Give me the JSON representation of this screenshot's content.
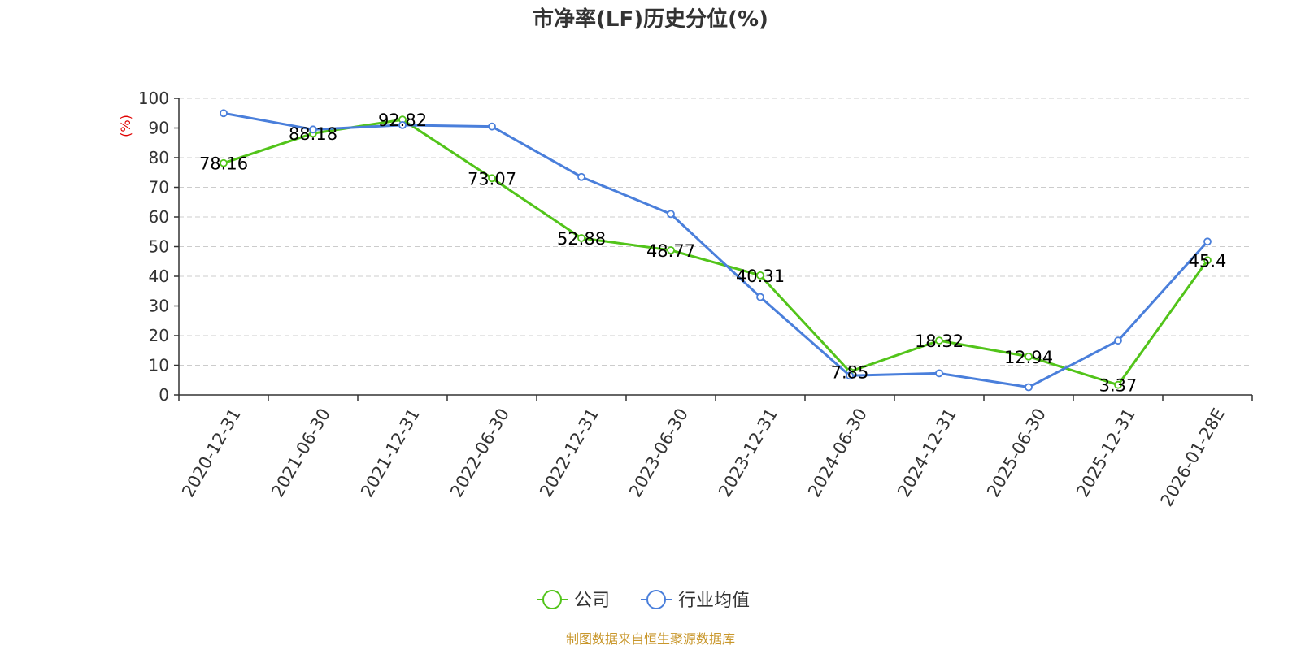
{
  "chart_data": {
    "type": "line",
    "title": "市净率(LF)历史分位(%)",
    "ylabel": "(%)",
    "ylim": [
      0,
      100
    ],
    "yticks": [
      0,
      10,
      20,
      30,
      40,
      50,
      60,
      70,
      80,
      90,
      100
    ],
    "categories": [
      "2020-12-31",
      "2021-06-30",
      "2021-12-31",
      "2022-06-30",
      "2022-12-31",
      "2023-06-30",
      "2023-12-31",
      "2024-06-30",
      "2024-12-31",
      "2025-06-30",
      "2025-12-31",
      "2026-01-28E"
    ],
    "grid": true,
    "legend_position": "bottom-center",
    "series": [
      {
        "name": "公司",
        "color": "#52c41a",
        "values": [
          78.16,
          88.18,
          92.82,
          73.07,
          52.88,
          48.77,
          40.31,
          7.85,
          18.32,
          12.94,
          3.37,
          45.4
        ],
        "labels": [
          "78.16",
          "88.18",
          "92.82",
          "73.07",
          "52.88",
          "48.77",
          "40.31",
          "7.85",
          "18.32",
          "12.94",
          "3.37",
          "45.4"
        ]
      },
      {
        "name": "行业均值",
        "color": "#4a7fdb",
        "values": [
          95.0,
          89.5,
          91.0,
          90.5,
          73.5,
          61.0,
          33.0,
          6.5,
          7.3,
          2.6,
          18.3,
          51.7
        ]
      }
    ]
  },
  "source": "制图数据来自恒生聚源数据库"
}
